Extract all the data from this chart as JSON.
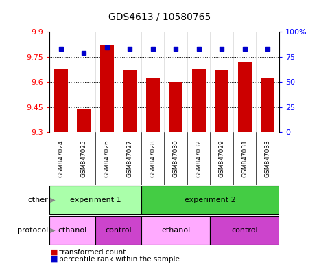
{
  "title": "GDS4613 / 10580765",
  "samples": [
    "GSM847024",
    "GSM847025",
    "GSM847026",
    "GSM847027",
    "GSM847028",
    "GSM847030",
    "GSM847032",
    "GSM847029",
    "GSM847031",
    "GSM847033"
  ],
  "bar_values": [
    9.68,
    9.44,
    9.82,
    9.67,
    9.62,
    9.6,
    9.68,
    9.67,
    9.72,
    9.62
  ],
  "percentile_values": [
    83,
    79,
    84,
    83,
    83,
    83,
    83,
    83,
    83,
    83
  ],
  "ymin": 9.3,
  "ymax": 9.9,
  "yticks": [
    9.3,
    9.45,
    9.6,
    9.75,
    9.9
  ],
  "right_yticks": [
    0,
    25,
    50,
    75,
    100
  ],
  "bar_color": "#cc0000",
  "dot_color": "#0000cc",
  "other_row": [
    {
      "label": "experiment 1",
      "start": 0,
      "end": 4,
      "color": "#aaffaa"
    },
    {
      "label": "experiment 2",
      "start": 4,
      "end": 10,
      "color": "#44cc44"
    }
  ],
  "protocol_row": [
    {
      "label": "ethanol",
      "start": 0,
      "end": 2,
      "color": "#ffaaff"
    },
    {
      "label": "control",
      "start": 2,
      "end": 4,
      "color": "#cc44cc"
    },
    {
      "label": "ethanol",
      "start": 4,
      "end": 7,
      "color": "#ffaaff"
    },
    {
      "label": "control",
      "start": 7,
      "end": 10,
      "color": "#cc44cc"
    }
  ],
  "legend_items": [
    {
      "label": "transformed count",
      "color": "#cc0000"
    },
    {
      "label": "percentile rank within the sample",
      "color": "#0000cc"
    }
  ]
}
